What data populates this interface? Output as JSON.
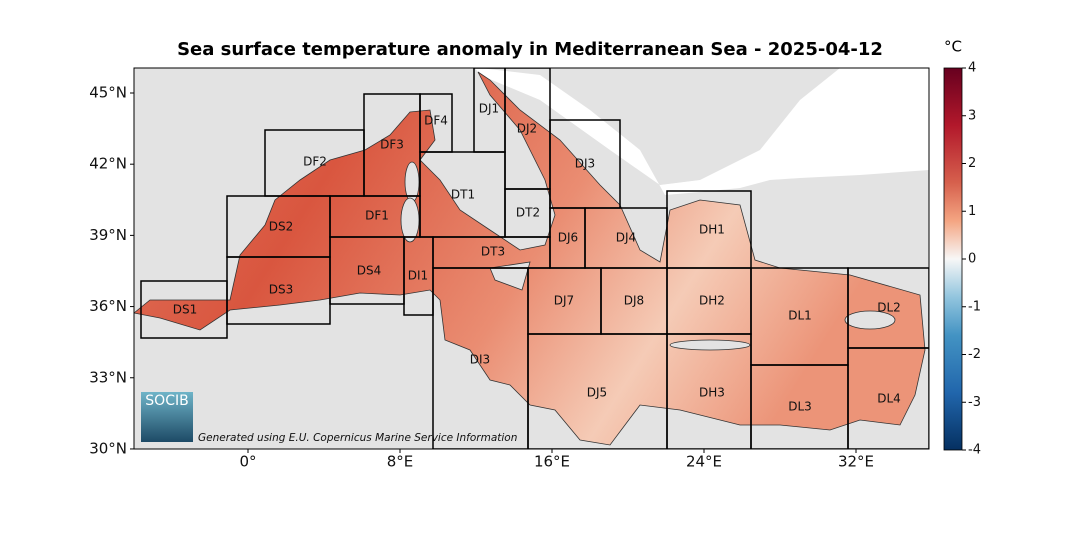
{
  "map": {
    "title": "Sea surface temperature anomaly in Mediterranean Sea - 2025-04-12",
    "unit": "°C",
    "lat_ticks": [
      {
        "value": 45,
        "label": "45°N"
      },
      {
        "value": 42,
        "label": "42°N"
      },
      {
        "value": 39,
        "label": "39°N"
      },
      {
        "value": 36,
        "label": "36°N"
      },
      {
        "value": 33,
        "label": "33°N"
      },
      {
        "value": 30,
        "label": "30°N"
      }
    ],
    "lon_ticks": [
      {
        "value": 0,
        "label": "0°"
      },
      {
        "value": 8,
        "label": "8°E"
      },
      {
        "value": 16,
        "label": "16°E"
      },
      {
        "value": 24,
        "label": "24°E"
      },
      {
        "value": 32,
        "label": "32°E"
      }
    ],
    "colorbar_ticks": [
      4,
      3,
      2,
      1,
      0,
      -1,
      -2,
      -3,
      -4
    ],
    "regions": [
      "DS1",
      "DS2",
      "DS3",
      "DS4",
      "DF1",
      "DF2",
      "DF3",
      "DF4",
      "DI1",
      "DI3",
      "DT1",
      "DT2",
      "DT3",
      "DJ1",
      "DJ2",
      "DJ3",
      "DJ4",
      "DJ5",
      "DJ6",
      "DJ7",
      "DJ8",
      "DH1",
      "DH2",
      "DH3",
      "DL1",
      "DL2",
      "DL3",
      "DL4"
    ],
    "logo": "SOCIB",
    "credit": "Generated using E.U. Copernicus Marine Service Information"
  }
}
